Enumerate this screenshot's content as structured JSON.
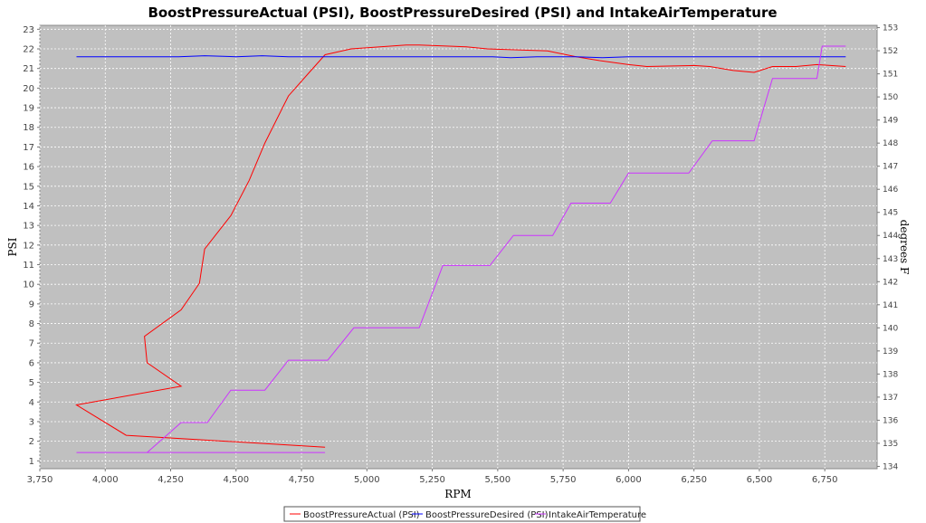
{
  "chart_data": {
    "type": "line",
    "title": "BoostPressureActual (PSI), BoostPressureDesired (PSI) and IntakeAirTemperature",
    "xlabel": "RPM",
    "ylabel": "PSI",
    "y2label": "degrees F",
    "xlim": [
      3750,
      6950
    ],
    "ylim": [
      0.6,
      23.2
    ],
    "y2lim": [
      133.9,
      153.1
    ],
    "x_ticks": [
      3750,
      4000,
      4250,
      4500,
      4750,
      5000,
      5250,
      5500,
      5750,
      6000,
      6250,
      6500,
      6750
    ],
    "x_tick_labels": [
      "3,750",
      "4,000",
      "4,250",
      "4,500",
      "4,750",
      "5,000",
      "5,250",
      "5,500",
      "5,750",
      "6,000",
      "6,250",
      "6,500",
      "6,750"
    ],
    "y_ticks": [
      1,
      2,
      3,
      4,
      5,
      6,
      7,
      8,
      9,
      10,
      11,
      12,
      13,
      14,
      15,
      16,
      17,
      18,
      19,
      20,
      21,
      22,
      23
    ],
    "y2_ticks": [
      134,
      135,
      136,
      137,
      138,
      139,
      140,
      141,
      142,
      143,
      144,
      145,
      146,
      147,
      148,
      149,
      150,
      151,
      152,
      153
    ],
    "grid": true,
    "legend_position": "bottom",
    "series": [
      {
        "name": "BoostPressureActual (PSI)",
        "color": "#ff0000",
        "axis": "left",
        "points": [
          [
            4840,
            1.7
          ],
          [
            4080,
            2.3
          ],
          [
            3890,
            3.85
          ],
          [
            4290,
            4.8
          ],
          [
            4160,
            6.0
          ],
          [
            4150,
            7.35
          ],
          [
            4290,
            8.7
          ],
          [
            4360,
            10.05
          ],
          [
            4380,
            11.8
          ],
          [
            4480,
            13.5
          ],
          [
            4550,
            15.3
          ],
          [
            4610,
            17.2
          ],
          [
            4700,
            19.6
          ],
          [
            4780,
            20.8
          ],
          [
            4840,
            21.7
          ],
          [
            4940,
            22.0
          ],
          [
            5150,
            22.2
          ],
          [
            5200,
            22.2
          ],
          [
            5380,
            22.1
          ],
          [
            5460,
            22.0
          ],
          [
            5690,
            21.9
          ],
          [
            5800,
            21.6
          ],
          [
            5890,
            21.4
          ],
          [
            6000,
            21.2
          ],
          [
            6070,
            21.1
          ],
          [
            6250,
            21.15
          ],
          [
            6310,
            21.1
          ],
          [
            6400,
            20.9
          ],
          [
            6480,
            20.8
          ],
          [
            6550,
            21.1
          ],
          [
            6640,
            21.1
          ],
          [
            6720,
            21.2
          ],
          [
            6830,
            21.1
          ]
        ]
      },
      {
        "name": "BoostPressureDesired (PSI)",
        "color": "#0000ff",
        "axis": "left",
        "points": [
          [
            3890,
            21.6
          ],
          [
            4280,
            21.6
          ],
          [
            4380,
            21.65
          ],
          [
            4500,
            21.6
          ],
          [
            4600,
            21.65
          ],
          [
            4700,
            21.6
          ],
          [
            4840,
            21.6
          ],
          [
            5000,
            21.6
          ],
          [
            5250,
            21.6
          ],
          [
            5480,
            21.6
          ],
          [
            5550,
            21.55
          ],
          [
            5650,
            21.6
          ],
          [
            5800,
            21.6
          ],
          [
            5900,
            21.55
          ],
          [
            6000,
            21.6
          ],
          [
            6250,
            21.6
          ],
          [
            6500,
            21.6
          ],
          [
            6830,
            21.6
          ]
        ]
      },
      {
        "name": "IntakeAirTemperature",
        "color": "#cc33ff",
        "axis": "right",
        "points": [
          [
            4840,
            134.6
          ],
          [
            3890,
            134.6
          ],
          [
            4160,
            134.6
          ],
          [
            4290,
            135.9
          ],
          [
            4390,
            135.9
          ],
          [
            4480,
            137.3
          ],
          [
            4610,
            137.3
          ],
          [
            4700,
            138.6
          ],
          [
            4850,
            138.6
          ],
          [
            4950,
            140.0
          ],
          [
            5200,
            140.0
          ],
          [
            5290,
            142.7
          ],
          [
            5470,
            142.7
          ],
          [
            5560,
            144.0
          ],
          [
            5710,
            144.0
          ],
          [
            5780,
            145.4
          ],
          [
            5930,
            145.4
          ],
          [
            6000,
            146.7
          ],
          [
            6230,
            146.7
          ],
          [
            6320,
            148.1
          ],
          [
            6480,
            148.1
          ],
          [
            6550,
            150.8
          ],
          [
            6720,
            150.8
          ],
          [
            6740,
            152.2
          ],
          [
            6830,
            152.2
          ]
        ]
      }
    ]
  }
}
